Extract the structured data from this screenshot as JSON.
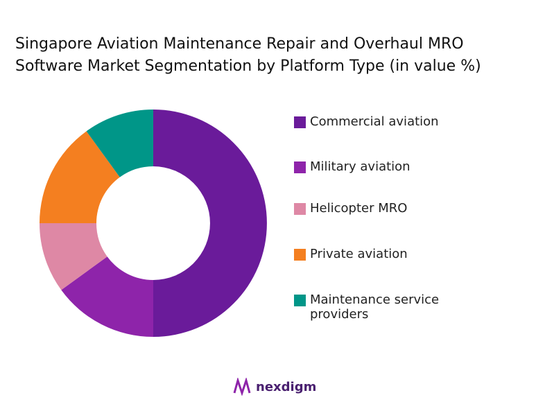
{
  "chart_data": {
    "type": "pie",
    "title": "Singapore Aviation Maintenance Repair and Overhaul MRO Software Market Segmentation by Platform Type (in value %)",
    "categories": [
      "Commercial aviation",
      "Military aviation",
      "Helicopter MRO",
      "Private aviation",
      "Maintenance service providers"
    ],
    "values": [
      50,
      15,
      10,
      15,
      10
    ],
    "colors": [
      "#6a1b9a",
      "#8e24aa",
      "#de88a5",
      "#f47f20",
      "#009688"
    ],
    "legend": "right"
  },
  "footer": {
    "logo": "nexdigm"
  }
}
